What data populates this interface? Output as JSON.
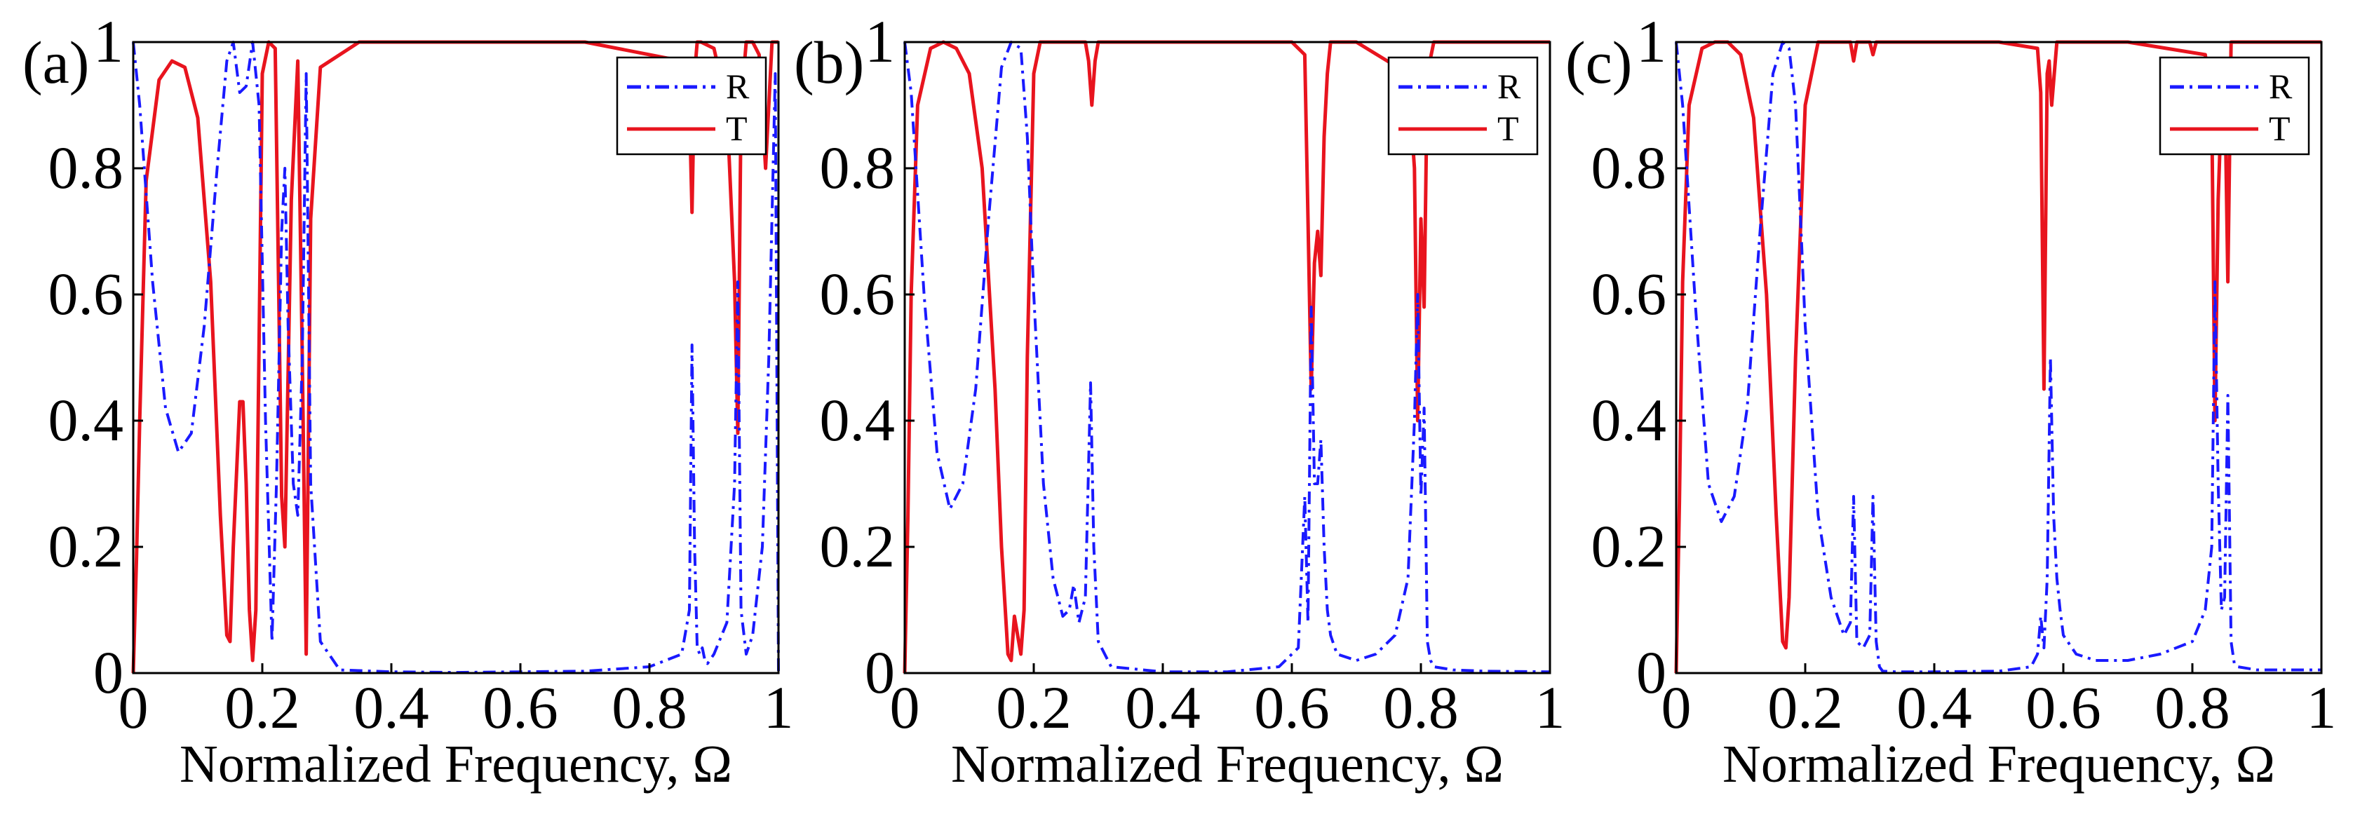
{
  "chart_data": [
    {
      "type": "line",
      "panel_label": "(a)",
      "xlabel": "Normalized Frequency, Ω",
      "ylabel": "",
      "xlim": [
        0,
        1
      ],
      "ylim": [
        0,
        1
      ],
      "x_ticks": [
        "0",
        "0.2",
        "0.4",
        "0.6",
        "0.8",
        "1"
      ],
      "y_ticks": [
        "0",
        "0.2",
        "0.4",
        "0.6",
        "0.8",
        "1"
      ],
      "legend": {
        "position": "top-right",
        "entries": [
          "R",
          "T"
        ]
      },
      "series": [
        {
          "name": "R",
          "color": "#1a1aff",
          "style": "dash-dot",
          "x": [
            0,
            0.01,
            0.03,
            0.05,
            0.07,
            0.09,
            0.11,
            0.13,
            0.145,
            0.155,
            0.165,
            0.175,
            0.185,
            0.195,
            0.205,
            0.215,
            0.222,
            0.23,
            0.235,
            0.24,
            0.248,
            0.255,
            0.262,
            0.268,
            0.275,
            0.29,
            0.32,
            0.4,
            0.5,
            0.6,
            0.7,
            0.8,
            0.85,
            0.862,
            0.866,
            0.87,
            0.874,
            0.878,
            0.882,
            0.886,
            0.89,
            0.9,
            0.92,
            0.932,
            0.937,
            0.942,
            0.95,
            0.96,
            0.975,
            0.985,
            0.995,
            1
          ],
          "y": [
            1.0,
            0.9,
            0.62,
            0.42,
            0.35,
            0.38,
            0.55,
            0.8,
            0.97,
            1.0,
            0.92,
            0.93,
            1.0,
            0.9,
            0.4,
            0.05,
            0.3,
            0.7,
            0.8,
            0.55,
            0.3,
            0.25,
            0.5,
            0.95,
            0.3,
            0.05,
            0.005,
            0.002,
            0.001,
            0.002,
            0.003,
            0.01,
            0.03,
            0.1,
            0.52,
            0.2,
            0.04,
            0.03,
            0.04,
            0.02,
            0.015,
            0.03,
            0.08,
            0.3,
            0.62,
            0.1,
            0.03,
            0.06,
            0.2,
            0.5,
            0.95,
            0.0
          ]
        },
        {
          "name": "T",
          "color": "#e8141e",
          "style": "solid",
          "x": [
            0,
            0.005,
            0.01,
            0.02,
            0.04,
            0.06,
            0.08,
            0.1,
            0.12,
            0.135,
            0.145,
            0.15,
            0.155,
            0.165,
            0.17,
            0.175,
            0.18,
            0.185,
            0.19,
            0.2,
            0.21,
            0.22,
            0.23,
            0.235,
            0.245,
            0.255,
            0.262,
            0.268,
            0.275,
            0.29,
            0.35,
            0.5,
            0.7,
            0.85,
            0.862,
            0.866,
            0.87,
            0.874,
            0.88,
            0.9,
            0.92,
            0.932,
            0.937,
            0.942,
            0.95,
            0.96,
            0.97,
            0.98,
            0.99,
            1
          ],
          "y": [
            0.0,
            0.18,
            0.4,
            0.78,
            0.94,
            0.97,
            0.96,
            0.88,
            0.62,
            0.25,
            0.06,
            0.05,
            0.2,
            0.43,
            0.43,
            0.3,
            0.1,
            0.02,
            0.1,
            0.95,
            1.0,
            0.99,
            0.28,
            0.2,
            0.75,
            0.97,
            0.5,
            0.03,
            0.72,
            0.96,
            1.0,
            1.0,
            1.0,
            0.97,
            0.9,
            0.73,
            0.95,
            1.0,
            1.0,
            0.99,
            0.9,
            0.62,
            0.38,
            0.9,
            1.0,
            1.0,
            0.98,
            0.8,
            1.0,
            1.0
          ]
        }
      ]
    },
    {
      "type": "line",
      "panel_label": "(b)",
      "xlabel": "Normalized Frequency, Ω",
      "ylabel": "",
      "xlim": [
        0,
        1
      ],
      "ylim": [
        0,
        1
      ],
      "x_ticks": [
        "0",
        "0.2",
        "0.4",
        "0.6",
        "0.8",
        "1"
      ],
      "y_ticks": [
        "0",
        "0.2",
        "0.4",
        "0.6",
        "0.8",
        "1"
      ],
      "legend": {
        "position": "top-right",
        "entries": [
          "R",
          "T"
        ]
      },
      "series": [
        {
          "name": "R",
          "color": "#1a1aff",
          "style": "dash-dot",
          "x": [
            0,
            0.01,
            0.03,
            0.05,
            0.07,
            0.09,
            0.11,
            0.13,
            0.15,
            0.165,
            0.18,
            0.19,
            0.2,
            0.215,
            0.23,
            0.245,
            0.255,
            0.262,
            0.27,
            0.28,
            0.288,
            0.293,
            0.3,
            0.32,
            0.4,
            0.5,
            0.58,
            0.61,
            0.62,
            0.625,
            0.63,
            0.635,
            0.64,
            0.645,
            0.65,
            0.655,
            0.66,
            0.67,
            0.7,
            0.73,
            0.76,
            0.78,
            0.79,
            0.795,
            0.8,
            0.805,
            0.81,
            0.815,
            0.82,
            0.85,
            0.9,
            1
          ],
          "y": [
            1.0,
            0.92,
            0.6,
            0.35,
            0.26,
            0.3,
            0.45,
            0.72,
            0.96,
            1.0,
            0.99,
            0.85,
            0.6,
            0.3,
            0.15,
            0.09,
            0.1,
            0.14,
            0.08,
            0.12,
            0.46,
            0.2,
            0.05,
            0.01,
            0.002,
            0.002,
            0.01,
            0.04,
            0.28,
            0.08,
            0.58,
            0.3,
            0.3,
            0.37,
            0.2,
            0.1,
            0.06,
            0.03,
            0.02,
            0.03,
            0.06,
            0.15,
            0.4,
            0.6,
            0.28,
            0.42,
            0.05,
            0.02,
            0.01,
            0.005,
            0.003,
            0.002
          ]
        },
        {
          "name": "T",
          "color": "#e8141e",
          "style": "solid",
          "x": [
            0,
            0.005,
            0.01,
            0.02,
            0.04,
            0.06,
            0.08,
            0.1,
            0.12,
            0.14,
            0.15,
            0.16,
            0.165,
            0.17,
            0.175,
            0.18,
            0.185,
            0.19,
            0.2,
            0.21,
            0.22,
            0.24,
            0.28,
            0.285,
            0.29,
            0.295,
            0.3,
            0.4,
            0.5,
            0.6,
            0.62,
            0.625,
            0.63,
            0.635,
            0.64,
            0.645,
            0.65,
            0.655,
            0.66,
            0.7,
            0.78,
            0.79,
            0.795,
            0.8,
            0.805,
            0.81,
            0.82,
            0.9,
            1
          ],
          "y": [
            0.0,
            0.25,
            0.6,
            0.9,
            0.99,
            1.0,
            0.99,
            0.95,
            0.8,
            0.45,
            0.2,
            0.03,
            0.02,
            0.09,
            0.06,
            0.03,
            0.1,
            0.5,
            0.95,
            1.0,
            1.0,
            1.0,
            1.0,
            0.97,
            0.9,
            0.97,
            1.0,
            1.0,
            1.0,
            1.0,
            0.98,
            0.72,
            0.45,
            0.65,
            0.7,
            0.63,
            0.85,
            0.95,
            1.0,
            1.0,
            0.95,
            0.8,
            0.4,
            0.72,
            0.58,
            0.95,
            1.0,
            1.0,
            1.0
          ]
        }
      ]
    },
    {
      "type": "line",
      "panel_label": "(c)",
      "xlabel": "Normalized Frequency, Ω",
      "ylabel": "",
      "xlim": [
        0,
        1
      ],
      "ylim": [
        0,
        1
      ],
      "x_ticks": [
        "0",
        "0.2",
        "0.4",
        "0.6",
        "0.8",
        "1"
      ],
      "y_ticks": [
        "0",
        "0.2",
        "0.4",
        "0.6",
        "0.8",
        "1"
      ],
      "legend": {
        "position": "top-right",
        "entries": [
          "R",
          "T"
        ]
      },
      "series": [
        {
          "name": "R",
          "color": "#1a1aff",
          "style": "dash-dot",
          "x": [
            0,
            0.01,
            0.03,
            0.05,
            0.07,
            0.09,
            0.11,
            0.13,
            0.15,
            0.165,
            0.175,
            0.185,
            0.2,
            0.22,
            0.24,
            0.26,
            0.27,
            0.275,
            0.28,
            0.29,
            0.3,
            0.305,
            0.31,
            0.315,
            0.32,
            0.34,
            0.4,
            0.5,
            0.55,
            0.56,
            0.565,
            0.57,
            0.575,
            0.58,
            0.585,
            0.59,
            0.595,
            0.6,
            0.62,
            0.65,
            0.7,
            0.75,
            0.8,
            0.82,
            0.83,
            0.835,
            0.84,
            0.845,
            0.85,
            0.855,
            0.86,
            0.865,
            0.87,
            0.9,
            1
          ],
          "y": [
            1.0,
            0.9,
            0.58,
            0.3,
            0.24,
            0.28,
            0.42,
            0.7,
            0.95,
            1.0,
            0.99,
            0.9,
            0.55,
            0.25,
            0.12,
            0.06,
            0.08,
            0.28,
            0.05,
            0.04,
            0.06,
            0.28,
            0.05,
            0.01,
            0.003,
            0.002,
            0.002,
            0.003,
            0.01,
            0.03,
            0.09,
            0.04,
            0.15,
            0.5,
            0.25,
            0.15,
            0.1,
            0.06,
            0.03,
            0.02,
            0.02,
            0.03,
            0.05,
            0.1,
            0.2,
            0.62,
            0.3,
            0.1,
            0.12,
            0.44,
            0.05,
            0.015,
            0.01,
            0.005,
            0.005
          ]
        },
        {
          "name": "T",
          "color": "#e8141e",
          "style": "solid",
          "x": [
            0,
            0.005,
            0.01,
            0.02,
            0.04,
            0.06,
            0.08,
            0.1,
            0.12,
            0.14,
            0.155,
            0.165,
            0.17,
            0.175,
            0.185,
            0.2,
            0.22,
            0.25,
            0.27,
            0.275,
            0.28,
            0.3,
            0.305,
            0.31,
            0.32,
            0.5,
            0.56,
            0.565,
            0.57,
            0.575,
            0.578,
            0.582,
            0.586,
            0.59,
            0.6,
            0.7,
            0.82,
            0.83,
            0.835,
            0.84,
            0.845,
            0.85,
            0.855,
            0.86,
            0.87,
            1
          ],
          "y": [
            0.0,
            0.27,
            0.62,
            0.9,
            0.99,
            1.0,
            1.0,
            0.98,
            0.88,
            0.6,
            0.25,
            0.05,
            0.04,
            0.12,
            0.5,
            0.9,
            1.0,
            1.0,
            1.0,
            0.97,
            1.0,
            1.0,
            0.98,
            1.0,
            1.0,
            1.0,
            0.99,
            0.92,
            0.45,
            0.95,
            0.97,
            0.9,
            0.95,
            1.0,
            1.0,
            1.0,
            0.98,
            0.9,
            0.4,
            0.75,
            0.9,
            0.95,
            0.62,
            1.0,
            1.0,
            1.0
          ]
        }
      ]
    }
  ]
}
